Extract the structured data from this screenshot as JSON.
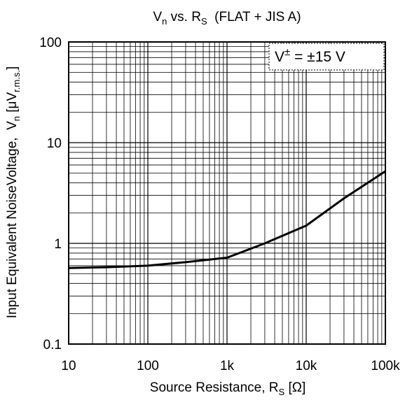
{
  "chart_data": {
    "type": "line",
    "title": {
      "main": "V",
      "sub1": "n",
      "mid": " vs. R",
      "sub2": "S",
      "tail": "  (FLAT + JIS A)"
    },
    "xlabel": {
      "main": "Source Resistance, R",
      "sub": "S",
      "tail": " [Ω]"
    },
    "ylabel": {
      "main": "Input Equivalent NoiseVoltage,  V",
      "sub1": "n",
      "mid": " [μV",
      "sub2": "r.m.s.",
      "tail": "]"
    },
    "x_scale": "log",
    "y_scale": "log",
    "xlim": [
      10,
      100000
    ],
    "ylim": [
      0.1,
      100
    ],
    "x_ticks": [
      {
        "value": 10,
        "label": "10"
      },
      {
        "value": 100,
        "label": "100"
      },
      {
        "value": 1000,
        "label": "1k"
      },
      {
        "value": 10000,
        "label": "10k"
      },
      {
        "value": 100000,
        "label": "100k"
      }
    ],
    "y_ticks": [
      {
        "value": 0.1,
        "label": "0.1"
      },
      {
        "value": 1,
        "label": "1"
      },
      {
        "value": 10,
        "label": "10"
      },
      {
        "value": 100,
        "label": "100"
      }
    ],
    "grid": true,
    "annotation": {
      "main": "V",
      "sup": "±",
      "tail": " = ±15 V"
    },
    "annotation_position": "top-right",
    "line_color": "#000000",
    "series": [
      {
        "x": [
          10,
          30,
          100,
          300,
          1000,
          3000,
          10000,
          30000,
          100000
        ],
        "y": [
          0.57,
          0.58,
          0.6,
          0.65,
          0.72,
          1.0,
          1.5,
          2.8,
          5.2
        ]
      }
    ]
  }
}
